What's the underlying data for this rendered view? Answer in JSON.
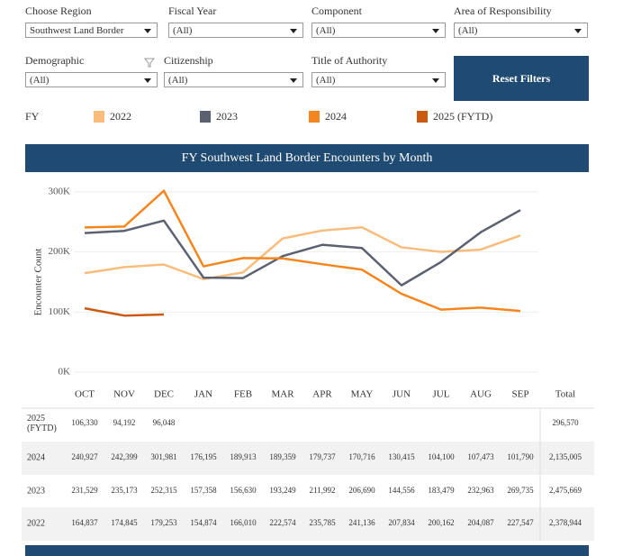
{
  "filters": [
    {
      "label": "Choose Region",
      "value": "Southwest Land Border"
    },
    {
      "label": "Fiscal Year",
      "value": "(All)"
    },
    {
      "label": "Component",
      "value": "(All)"
    },
    {
      "label": "Area of Responsibility",
      "value": "(All)"
    },
    {
      "label": "Demographic",
      "value": "(All)"
    },
    {
      "label": "Citizenship",
      "value": "(All)"
    },
    {
      "label": "Title of Authority",
      "value": "(All)"
    }
  ],
  "reset_button": "Reset Filters",
  "chart_data": {
    "type": "line",
    "title": "FY Southwest Land Border Encounters by Month",
    "legend_title": "FY",
    "y_label": "Encounter Count",
    "categories": [
      "OCT",
      "NOV",
      "DEC",
      "JAN",
      "FEB",
      "MAR",
      "APR",
      "MAY",
      "JUN",
      "JUL",
      "AUG",
      "SEP"
    ],
    "ylim": [
      0,
      300000
    ],
    "yticks": [
      {
        "value": 0,
        "label": "0K"
      },
      {
        "value": 100000,
        "label": "100K"
      },
      {
        "value": 200000,
        "label": "200K"
      },
      {
        "value": 300000,
        "label": "300K"
      }
    ],
    "grid": true,
    "series": [
      {
        "name": "2022",
        "color": "#f8bc7c",
        "values": [
          164837,
          174845,
          179253,
          154874,
          166010,
          222574,
          235785,
          241136,
          207834,
          200162,
          204087,
          227547
        ]
      },
      {
        "name": "2023",
        "color": "#5b6170",
        "values": [
          231529,
          235173,
          252315,
          157358,
          156630,
          193249,
          211992,
          206690,
          144556,
          183479,
          232963,
          269735
        ]
      },
      {
        "name": "2024",
        "color": "#f5861f",
        "values": [
          240927,
          242399,
          301981,
          176195,
          189913,
          189359,
          179737,
          170716,
          130415,
          104100,
          107473,
          101790
        ]
      },
      {
        "name": "2025 (FYTD)",
        "color": "#c95a0f",
        "values": [
          106330,
          94192,
          96048,
          null,
          null,
          null,
          null,
          null,
          null,
          null,
          null,
          null
        ]
      }
    ]
  },
  "table": {
    "total_label": "Total",
    "rows": [
      {
        "year": "2025 (FYTD)",
        "cells": [
          "106,330",
          "94,192",
          "96,048",
          null,
          null,
          null,
          null,
          null,
          null,
          null,
          null,
          null
        ],
        "total": "296,570"
      },
      {
        "year": "2024",
        "cells": [
          "240,927",
          "242,399",
          "301,981",
          "176,195",
          "189,913",
          "189,359",
          "179,737",
          "170,716",
          "130,415",
          "104,100",
          "107,473",
          "101,790"
        ],
        "total": "2,135,005"
      },
      {
        "year": "2023",
        "cells": [
          "231,529",
          "235,173",
          "252,315",
          "157,358",
          "156,630",
          "193,249",
          "211,992",
          "206,690",
          "144,556",
          "183,479",
          "232,963",
          "269,735"
        ],
        "total": "2,475,669"
      },
      {
        "year": "2022",
        "cells": [
          "164,837",
          "174,845",
          "179,253",
          "154,874",
          "166,010",
          "222,574",
          "235,785",
          "241,136",
          "207,834",
          "200,162",
          "204,087",
          "227,547"
        ],
        "total": "2,378,944"
      }
    ]
  }
}
